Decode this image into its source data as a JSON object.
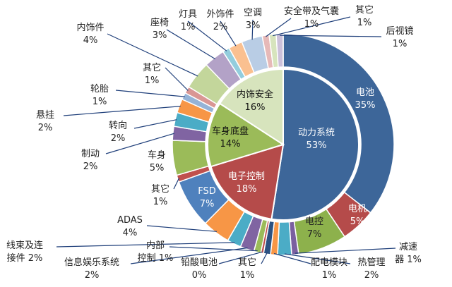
{
  "chart_data": {
    "type": "pie",
    "inner": [
      {
        "label": "动力系统",
        "value": 53,
        "pct": "53%",
        "color": "#3d6699"
      },
      {
        "label": "电子控制",
        "value": 18,
        "pct": "18%",
        "color": "#b54b4a"
      },
      {
        "label": "车身底盘",
        "value": 14,
        "pct": "14%",
        "color": "#9bbb59"
      },
      {
        "label": "内饰安全",
        "value": 16,
        "pct": "16%",
        "color": "#d7e4bd"
      }
    ],
    "outer": [
      {
        "label": "电池",
        "value": 35,
        "pct": "35%",
        "group": "动力系统",
        "color": "#3d6699"
      },
      {
        "label": "电机",
        "value": 5,
        "pct": "5%",
        "group": "动力系统",
        "color": "#b54b4a"
      },
      {
        "label": "电控",
        "value": 7,
        "pct": "7%",
        "group": "动力系统",
        "color": "#8db14c"
      },
      {
        "label": "减速器",
        "value": 1,
        "pct": "1%",
        "group": "动力系统",
        "color": "#7a5fa0"
      },
      {
        "label": "热管理",
        "value": 2,
        "pct": "2%",
        "group": "动力系统",
        "color": "#4bacc6"
      },
      {
        "label": "配电模块",
        "value": 1,
        "pct": "1%",
        "group": "动力系统",
        "color": "#f79646"
      },
      {
        "label": "其它",
        "value": 1,
        "pct": "1%",
        "group": "动力系统",
        "color": "#2c5282"
      },
      {
        "label": "铅酸电池",
        "value": 0.4,
        "pct": "0%",
        "group": "动力系统",
        "color": "#c0504d"
      },
      {
        "label": "内部控制",
        "value": 1,
        "pct": "1%",
        "group": "电子控制",
        "color": "#9bbb59"
      },
      {
        "label": "信息娱乐系统",
        "value": 2,
        "pct": "2%",
        "group": "电子控制",
        "color": "#8064a2"
      },
      {
        "label": "线束及连接件",
        "value": 2,
        "pct": "2%",
        "group": "电子控制",
        "color": "#4bacc6"
      },
      {
        "label": "ADAS",
        "value": 4,
        "pct": "4%",
        "group": "电子控制",
        "color": "#f79646"
      },
      {
        "label": "FSD",
        "value": 7,
        "pct": "7%",
        "group": "电子控制",
        "color": "#4f81bd"
      },
      {
        "label": "其它",
        "value": 1,
        "pct": "1%",
        "group": "电子控制",
        "color": "#c0504d"
      },
      {
        "label": "车身",
        "value": 5,
        "pct": "5%",
        "group": "车身底盘",
        "color": "#9bbb59"
      },
      {
        "label": "制动",
        "value": 2,
        "pct": "2%",
        "group": "车身底盘",
        "color": "#8064a2"
      },
      {
        "label": "转向",
        "value": 2,
        "pct": "2%",
        "group": "车身底盘",
        "color": "#4bacc6"
      },
      {
        "label": "悬挂",
        "value": 2,
        "pct": "2%",
        "group": "车身底盘",
        "color": "#f79646"
      },
      {
        "label": "轮胎",
        "value": 1,
        "pct": "1%",
        "group": "车身底盘",
        "color": "#95b3d7"
      },
      {
        "label": "其它",
        "value": 1,
        "pct": "1%",
        "group": "车身底盘",
        "color": "#d99694"
      },
      {
        "label": "内饰件",
        "value": 4,
        "pct": "4%",
        "group": "内饰安全",
        "color": "#c3d69b"
      },
      {
        "label": "座椅",
        "value": 3,
        "pct": "3%",
        "group": "内饰安全",
        "color": "#b3a2c7"
      },
      {
        "label": "灯具",
        "value": 1,
        "pct": "1%",
        "group": "内饰安全",
        "color": "#93cddd"
      },
      {
        "label": "外饰件",
        "value": 2,
        "pct": "2%",
        "group": "内饰安全",
        "color": "#fac090"
      },
      {
        "label": "空调",
        "value": 3,
        "pct": "3%",
        "group": "内饰安全",
        "color": "#b9cde5"
      },
      {
        "label": "安全带及气囊",
        "value": 1,
        "pct": "1%",
        "group": "内饰安全",
        "color": "#e6b9b8"
      },
      {
        "label": "其它",
        "value": 1,
        "pct": "1%",
        "group": "内饰安全",
        "color": "#d7e4bd"
      },
      {
        "label": "后视镜",
        "value": 1,
        "pct": "1%",
        "group": "内饰安全",
        "color": "#ccc1da"
      }
    ]
  }
}
